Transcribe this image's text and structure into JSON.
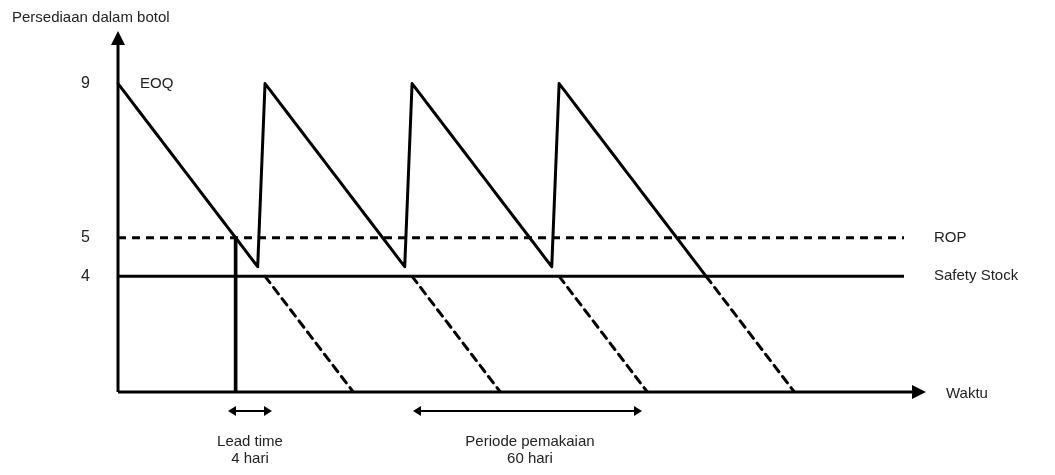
{
  "chart_data": {
    "type": "line",
    "ylabel": "Persediaan dalam botol",
    "xlabel": "Waktu",
    "categories": [
      null,
      null,
      null,
      null,
      null,
      null,
      null,
      null,
      null,
      null,
      null,
      null,
      null,
      null,
      null,
      null,
      null,
      null,
      null,
      null,
      null,
      null,
      null,
      null,
      null,
      null,
      null,
      null,
      null,
      null,
      null,
      null,
      null,
      null,
      null,
      null,
      null,
      null,
      null,
      null,
      null,
      null,
      null,
      null,
      null,
      null,
      null,
      null,
      null,
      null,
      null,
      null,
      null,
      null,
      null,
      null,
      null,
      null,
      null,
      null,
      null,
      null,
      null,
      null,
      null,
      null,
      null,
      null,
      null,
      null,
      null,
      null,
      null,
      null,
      null,
      null,
      null,
      null,
      null,
      null,
      null,
      null,
      null,
      null,
      null,
      null,
      null,
      null,
      null,
      null,
      null,
      null,
      null,
      null,
      null,
      null,
      null,
      null,
      null,
      null,
      null,
      null,
      null,
      null,
      null,
      null,
      null,
      null,
      null
    ],
    "ylim": [
      1,
      10
    ],
    "yticks": [
      9,
      5,
      4
    ],
    "tick_labels": "y",
    "grid": false,
    "legend": false,
    "marker": "none",
    "series": [
      {
        "color": "#000000",
        "line_style": "solid",
        "values": [
          9,
          8.75,
          8.5,
          8.25,
          8,
          7.75,
          7.5,
          7.25,
          7,
          6.75,
          6.5,
          6.25,
          6,
          5.75,
          5.5,
          5.25,
          5,
          4.75,
          4.5,
          4.25,
          9,
          8.75,
          8.5,
          8.25,
          8,
          7.75,
          7.5,
          7.25,
          7,
          6.75,
          6.5,
          6.25,
          6,
          5.75,
          5.5,
          5.25,
          5,
          4.75,
          4.5,
          4.25,
          9,
          8.75,
          8.5,
          8.25,
          8,
          7.75,
          7.5,
          7.25,
          7,
          6.75,
          6.5,
          6.25,
          6,
          5.75,
          5.5,
          5.25,
          5,
          4.75,
          4.5,
          4.25,
          9,
          8.75,
          8.5,
          8.25,
          8,
          7.75,
          7.5,
          7.25,
          7,
          6.75,
          6.5,
          6.25,
          6,
          5.75,
          5.5,
          5.25,
          5,
          4.75,
          4.5,
          4.25,
          4,
          null,
          null,
          null,
          null,
          null,
          null,
          null,
          null,
          null,
          null,
          null,
          null,
          null,
          null,
          null,
          null,
          null,
          null,
          null,
          null,
          null,
          null,
          null,
          null,
          null,
          null,
          null,
          null
        ]
      },
      {
        "color": "#000000",
        "line_style": "dashed",
        "values": [
          null,
          null,
          null,
          null,
          null,
          null,
          null,
          null,
          null,
          null,
          null,
          null,
          null,
          null,
          null,
          null,
          null,
          null,
          null,
          null,
          4,
          3.75,
          3.5,
          3.25,
          3,
          2.75,
          2.5,
          2.25,
          2,
          1.75,
          1.5,
          1.25,
          1,
          null,
          null,
          null,
          null,
          null,
          null,
          null,
          4,
          3.75,
          3.5,
          3.25,
          3,
          2.75,
          2.5,
          2.25,
          2,
          1.75,
          1.5,
          1.25,
          1,
          null,
          null,
          null,
          null,
          null,
          null,
          null,
          4,
          3.75,
          3.5,
          3.25,
          3,
          2.75,
          2.5,
          2.25,
          2,
          1.75,
          1.5,
          1.25,
          1,
          null,
          null,
          null,
          null,
          null,
          null,
          null,
          4,
          3.75,
          3.5,
          3.25,
          3,
          2.75,
          2.5,
          2.25,
          2,
          1.75,
          1.5,
          1.25,
          1,
          null,
          null,
          null,
          null,
          null,
          null,
          null,
          null,
          null,
          null,
          null,
          null,
          null,
          null,
          null,
          null
        ]
      },
      {
        "type": "bar",
        "color": "#000000",
        "values": [
          null,
          null,
          null,
          null,
          null,
          null,
          null,
          null,
          null,
          null,
          null,
          null,
          null,
          null,
          null,
          null,
          5,
          null,
          null,
          null,
          null,
          null,
          null,
          null,
          null,
          null,
          null,
          null,
          null,
          null,
          null,
          null,
          null,
          null,
          null,
          null,
          null,
          null,
          null,
          null,
          null,
          null,
          null,
          null,
          null,
          null,
          null,
          null,
          null,
          null,
          null,
          null,
          null,
          null,
          null,
          null,
          null,
          null,
          null,
          null,
          null,
          null,
          null,
          null,
          null,
          null,
          null,
          null,
          null,
          null,
          null,
          null,
          null,
          null,
          null,
          null,
          null,
          null,
          null,
          null,
          null,
          null,
          null,
          null,
          null,
          null,
          null,
          null,
          null,
          null,
          null,
          null,
          null,
          null,
          null,
          null,
          null,
          null,
          null,
          null,
          null,
          null,
          null,
          null,
          null,
          null,
          null,
          null,
          null
        ]
      }
    ],
    "ref_lines": [
      {
        "axis": "y",
        "value": 5,
        "label": "ROP",
        "line_style": "dashed",
        "color": "#000000"
      },
      {
        "axis": "y",
        "value": 4,
        "label": "Safety Stock",
        "line_style": "solid",
        "color": "#000000"
      }
    ],
    "annotations": [
      "EOQ",
      "Lead time\n4 hari",
      "Periode pemakaian\n60 hari"
    ]
  }
}
